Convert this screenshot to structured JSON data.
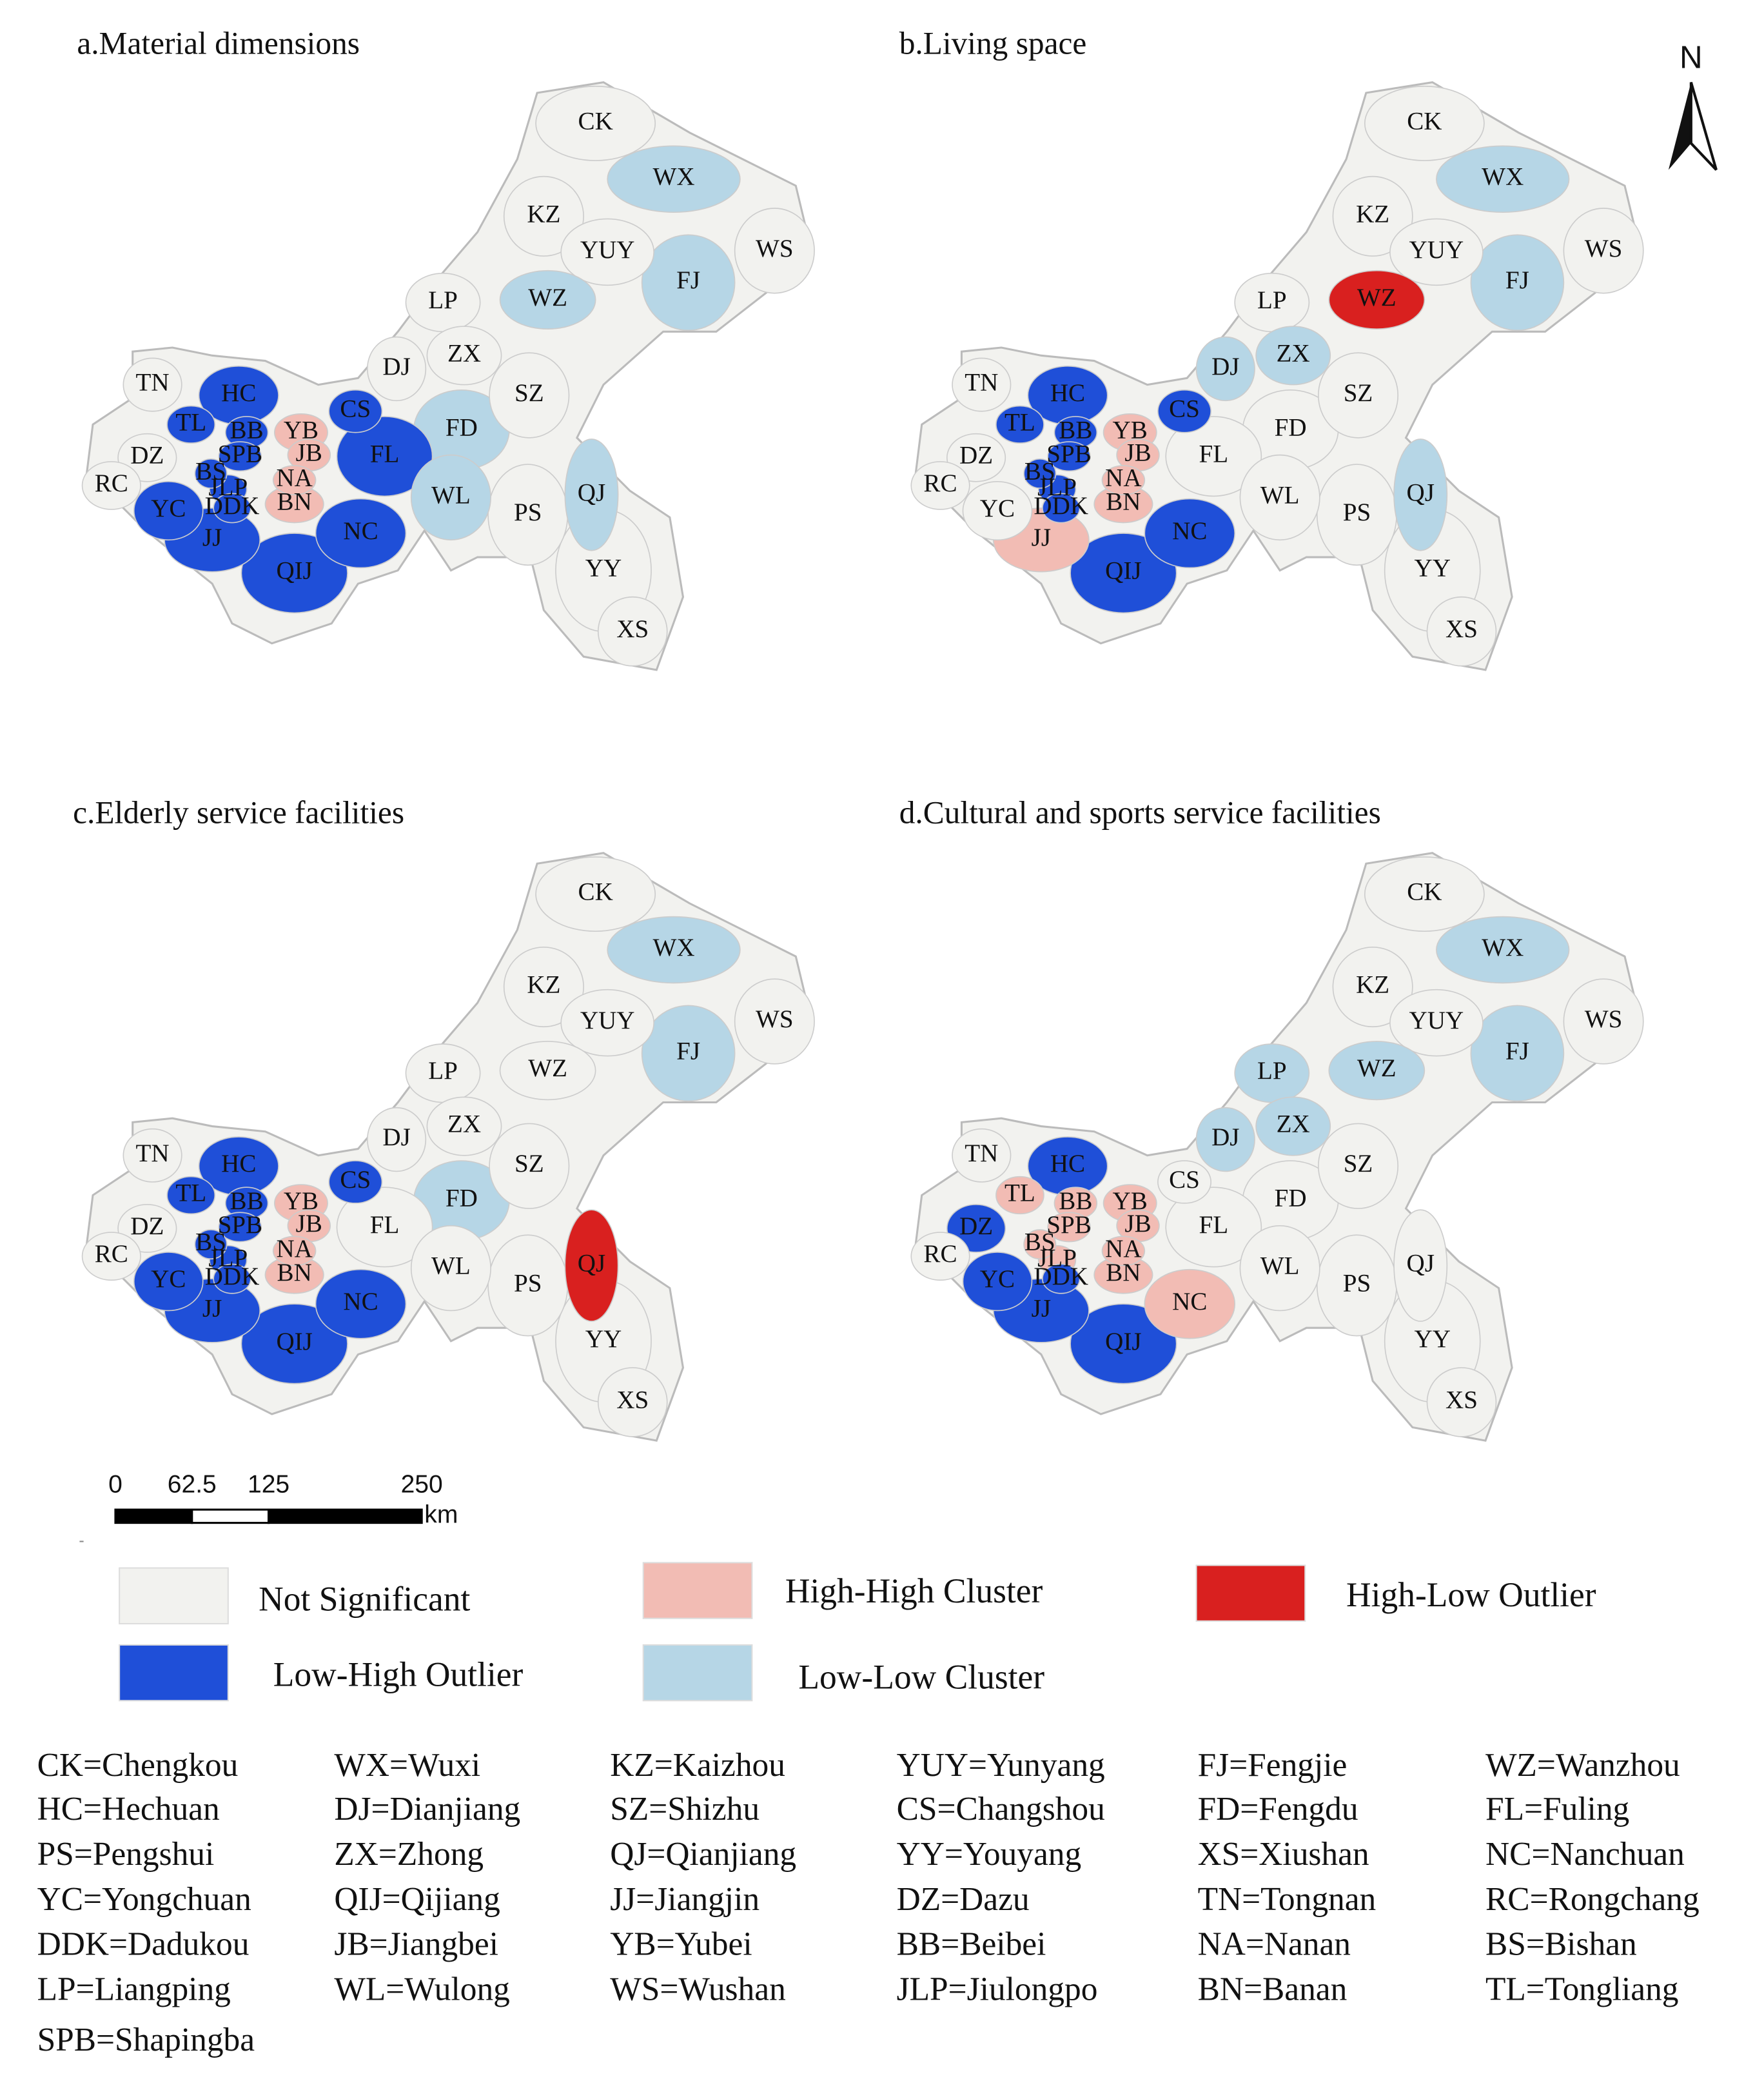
{
  "north": "N",
  "district_labels": [
    "CK",
    "WX",
    "KZ",
    "YUY",
    "WS",
    "FJ",
    "WZ",
    "LP",
    "DJ",
    "ZX",
    "SZ",
    "TN",
    "HC",
    "CS",
    "BB",
    "YB",
    "TL",
    "FD",
    "JB",
    "DZ",
    "SPB",
    "FL",
    "BS",
    "NA",
    "JLP",
    "RC",
    "WL",
    "QJ",
    "YC",
    "DDK",
    "BN",
    "PS",
    "NC",
    "JJ",
    "QIJ",
    "YY",
    "XS"
  ],
  "panels": [
    {
      "title": "a.Material dimensions",
      "classes": [
        "Not Significant",
        "Low-Low Cluster",
        "Not Significant",
        "Not Significant",
        "Not Significant",
        "Low-Low Cluster",
        "Low-Low Cluster",
        "Not Significant",
        "Not Significant",
        "Not Significant",
        "Not Significant",
        "Not Significant",
        "Low-High Outlier",
        "Low-High Outlier",
        "Low-High Outlier",
        "High-High Cluster",
        "Low-High Outlier",
        "Low-Low Cluster",
        "High-High Cluster",
        "Not Significant",
        "Low-High Outlier",
        "Low-High Outlier",
        "Low-High Outlier",
        "High-High Cluster",
        "Low-High Outlier",
        "Not Significant",
        "Low-Low Cluster",
        "Low-Low Cluster",
        "Low-High Outlier",
        "Low-High Outlier",
        "High-High Cluster",
        "Not Significant",
        "Low-High Outlier",
        "Low-High Outlier",
        "Low-High Outlier",
        "Not Significant",
        "Not Significant"
      ]
    },
    {
      "title": "b.Living space",
      "classes": [
        "Not Significant",
        "Low-Low Cluster",
        "Not Significant",
        "Not Significant",
        "Not Significant",
        "Low-Low Cluster",
        "High-Low Outlier",
        "Not Significant",
        "Low-Low Cluster",
        "Low-Low Cluster",
        "Not Significant",
        "Not Significant",
        "Low-High Outlier",
        "Low-High Outlier",
        "Low-High Outlier",
        "High-High Cluster",
        "Low-High Outlier",
        "Not Significant",
        "High-High Cluster",
        "Not Significant",
        "Low-High Outlier",
        "Not Significant",
        "Low-High Outlier",
        "High-High Cluster",
        "Low-High Outlier",
        "Not Significant",
        "Not Significant",
        "Low-Low Cluster",
        "Not Significant",
        "Low-High Outlier",
        "High-High Cluster",
        "Not Significant",
        "Low-High Outlier",
        "High-High Cluster",
        "Low-High Outlier",
        "Not Significant",
        "Not Significant"
      ]
    },
    {
      "title": "c.Elderly service facilities",
      "classes": [
        "Not Significant",
        "Low-Low Cluster",
        "Not Significant",
        "Not Significant",
        "Not Significant",
        "Low-Low Cluster",
        "Not Significant",
        "Not Significant",
        "Not Significant",
        "Not Significant",
        "Not Significant",
        "Not Significant",
        "Low-High Outlier",
        "Low-High Outlier",
        "Low-High Outlier",
        "High-High Cluster",
        "Low-High Outlier",
        "Low-Low Cluster",
        "High-High Cluster",
        "Not Significant",
        "Low-High Outlier",
        "Not Significant",
        "Low-High Outlier",
        "High-High Cluster",
        "Low-High Outlier",
        "Not Significant",
        "Not Significant",
        "High-Low Outlier",
        "Low-High Outlier",
        "Low-High Outlier",
        "High-High Cluster",
        "Not Significant",
        "Low-High Outlier",
        "Low-High Outlier",
        "Low-High Outlier",
        "Not Significant",
        "Not Significant"
      ]
    },
    {
      "title": "d.Cultural and sports service facilities",
      "classes": [
        "Not Significant",
        "Low-Low Cluster",
        "Not Significant",
        "Not Significant",
        "Not Significant",
        "Low-Low Cluster",
        "Low-Low Cluster",
        "Low-Low Cluster",
        "Low-Low Cluster",
        "Low-Low Cluster",
        "Not Significant",
        "Not Significant",
        "Low-High Outlier",
        "Not Significant",
        "High-High Cluster",
        "High-High Cluster",
        "High-High Cluster",
        "Not Significant",
        "High-High Cluster",
        "Low-High Outlier",
        "High-High Cluster",
        "Not Significant",
        "High-High Cluster",
        "High-High Cluster",
        "High-High Cluster",
        "Not Significant",
        "Not Significant",
        "Not Significant",
        "Low-High Outlier",
        "Low-High Outlier",
        "High-High Cluster",
        "Not Significant",
        "High-High Cluster",
        "Low-High Outlier",
        "Low-High Outlier",
        "Not Significant",
        "Not Significant"
      ]
    }
  ],
  "scale_bar": {
    "ticks": [
      0,
      62.5,
      125,
      250
    ],
    "unit": "km"
  },
  "legend": [
    {
      "name": "Not Significant",
      "color": "#f2f2ef"
    },
    {
      "name": "High-High Cluster",
      "color": "#f2bcb4"
    },
    {
      "name": "High-Low Outlier",
      "color": "#d9201f"
    },
    {
      "name": "Low-High Outlier",
      "color": "#1f4fd8"
    },
    {
      "name": "Low-Low Cluster",
      "color": "#b6d6e6"
    }
  ],
  "abbreviations": [
    "CK=Chengkou",
    "WX=Wuxi",
    "KZ=Kaizhou",
    "YUY=Yunyang",
    "FJ=Fengjie",
    "WZ=Wanzhou",
    "HC=Hechuan",
    "DJ=Dianjiang",
    "SZ=Shizhu",
    "CS=Changshou",
    "FD=Fengdu",
    "FL=Fuling",
    "PS=Pengshui",
    "ZX=Zhong",
    "QJ=Qianjiang",
    "YY=Youyang",
    "XS=Xiushan",
    "NC=Nanchuan",
    "YC=Yongchuan",
    "QIJ=Qijiang",
    "JJ=Jiangjin",
    "DZ=Dazu",
    "TN=Tongnan",
    "RC=Rongchang",
    "DDK=Dadukou",
    "JB=Jiangbei",
    "YB=Yubei",
    "BB=Beibei",
    "NA=Nanan",
    "BS=Bishan",
    "LP=Liangping",
    "WL=Wulong",
    "WS=Wushan",
    "JLP=Jiulongpo",
    "BN=Banan",
    "TL=Tongliang",
    "SPB=Shapingba"
  ]
}
